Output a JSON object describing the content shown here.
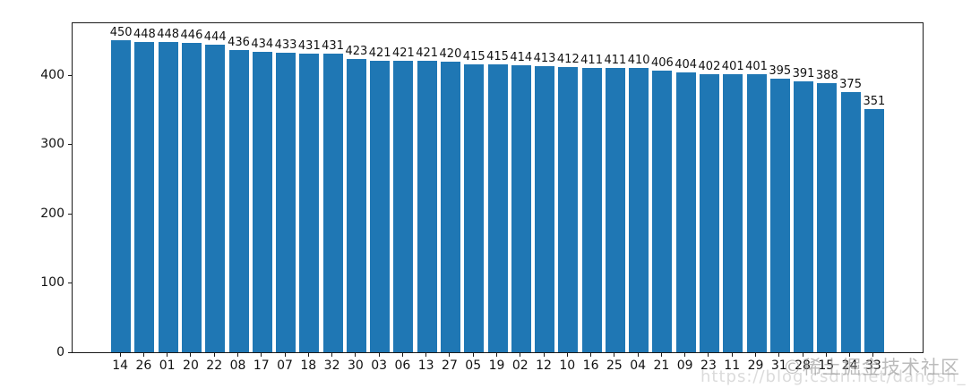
{
  "chart_data": {
    "type": "bar",
    "title": "",
    "xlabel": "",
    "ylabel": "",
    "categories": [
      "14",
      "26",
      "01",
      "20",
      "22",
      "08",
      "17",
      "07",
      "18",
      "32",
      "30",
      "03",
      "06",
      "13",
      "27",
      "05",
      "19",
      "02",
      "12",
      "10",
      "16",
      "25",
      "04",
      "21",
      "09",
      "23",
      "11",
      "29",
      "31",
      "28",
      "15",
      "24",
      "33"
    ],
    "values": [
      450,
      448,
      448,
      446,
      444,
      436,
      434,
      433,
      431,
      431,
      423,
      421,
      421,
      421,
      420,
      415,
      415,
      414,
      413,
      412,
      411,
      411,
      410,
      406,
      404,
      402,
      401,
      401,
      395,
      391,
      388,
      375,
      351
    ],
    "bar_color": "#1f77b4",
    "ylim": [
      0,
      475
    ],
    "yticks": [
      0,
      100,
      200,
      300,
      400
    ],
    "grid": false,
    "legend": false,
    "value_labels": true
  },
  "watermarks": {
    "juejin": "©稀土掘金技术社区",
    "csdn_url": "https://blog.csdn.net/dangsh_"
  }
}
